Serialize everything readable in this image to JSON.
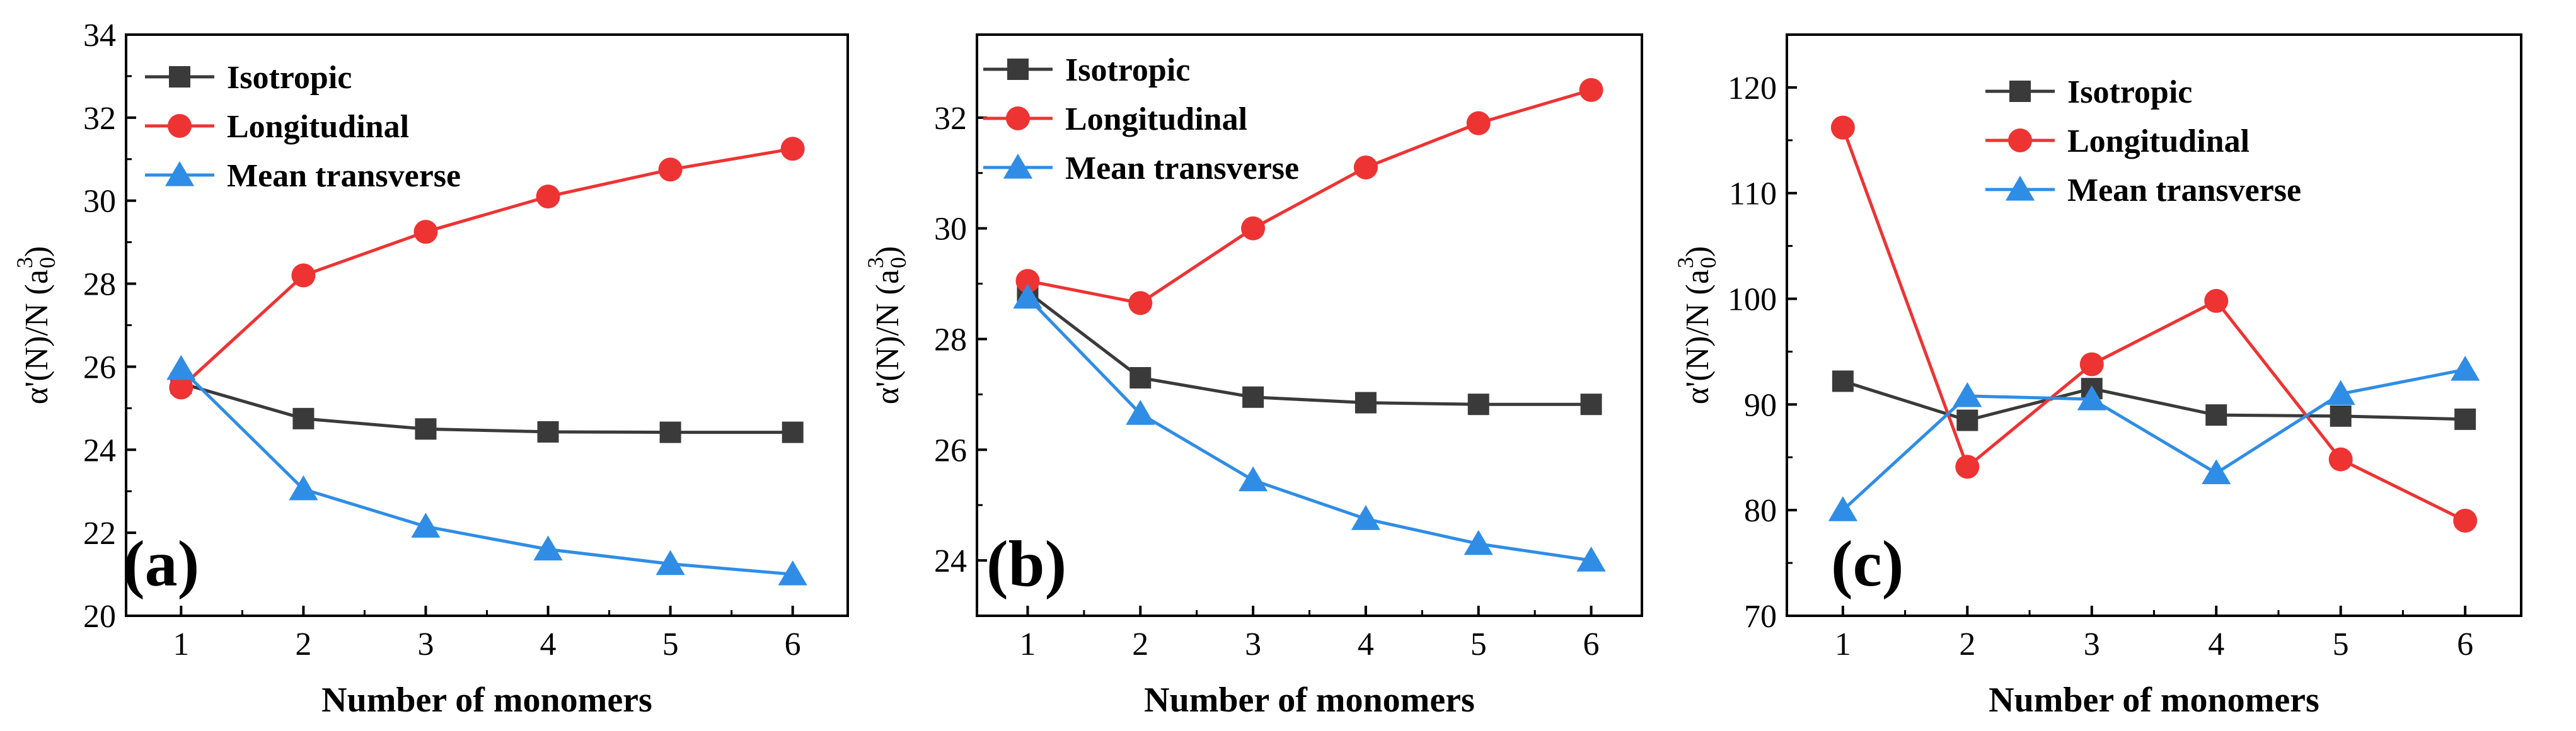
{
  "colors": {
    "isotropic": "#3a3a3a",
    "longitudinal": "#ee3333",
    "mean_transverse": "#2f8de6",
    "axis": "#000000"
  },
  "chart_data": [
    {
      "type": "line",
      "panel_label": "(a)",
      "xlabel": "Number of monomers",
      "ylabel": "α'(N)/N (a0³)",
      "x": [
        1,
        2,
        3,
        4,
        5,
        6
      ],
      "xlim": [
        0.55,
        6.45
      ],
      "ylim": [
        20,
        34
      ],
      "yticks": [
        20,
        22,
        24,
        26,
        28,
        30,
        32,
        34
      ],
      "legend_position": "top-left",
      "series": [
        {
          "name": "Isotropic",
          "marker": "square",
          "values": [
            25.6,
            24.75,
            24.5,
            24.43,
            24.42,
            24.42
          ]
        },
        {
          "name": "Longitudinal",
          "marker": "circle",
          "values": [
            25.5,
            28.2,
            29.25,
            30.1,
            30.75,
            31.25
          ]
        },
        {
          "name": "Mean transverse",
          "marker": "triangle",
          "values": [
            25.95,
            23.05,
            22.15,
            21.6,
            21.25,
            21.0
          ]
        }
      ]
    },
    {
      "type": "line",
      "panel_label": "(b)",
      "xlabel": "Number of monomers",
      "ylabel": "α'(N)/N (a0³)",
      "x": [
        1,
        2,
        3,
        4,
        5,
        6
      ],
      "xlim": [
        0.55,
        6.45
      ],
      "ylim": [
        23,
        33.5
      ],
      "yticks": [
        24,
        26,
        28,
        30,
        32
      ],
      "legend_position": "top-left",
      "series": [
        {
          "name": "Isotropic",
          "marker": "square",
          "values": [
            28.85,
            27.3,
            26.95,
            26.85,
            26.82,
            26.82
          ]
        },
        {
          "name": "Longitudinal",
          "marker": "circle",
          "values": [
            29.05,
            28.65,
            30.0,
            31.1,
            31.9,
            32.5
          ]
        },
        {
          "name": "Mean transverse",
          "marker": "triangle",
          "values": [
            28.75,
            26.65,
            25.45,
            24.75,
            24.3,
            24.0
          ]
        }
      ]
    },
    {
      "type": "line",
      "panel_label": "(c)",
      "xlabel": "Number of monomers",
      "ylabel": "α'(N)/N (a0³)",
      "x": [
        1,
        2,
        3,
        4,
        5,
        6
      ],
      "xlim": [
        0.55,
        6.45
      ],
      "ylim": [
        70,
        125
      ],
      "yticks": [
        70,
        80,
        90,
        100,
        110,
        120
      ],
      "legend_position": "top-center",
      "series": [
        {
          "name": "Isotropic",
          "marker": "square",
          "values": [
            92.2,
            88.5,
            91.5,
            89.0,
            88.9,
            88.6
          ]
        },
        {
          "name": "Longitudinal",
          "marker": "circle",
          "values": [
            116.2,
            84.1,
            93.8,
            99.8,
            84.8,
            79.0
          ]
        },
        {
          "name": "Mean transverse",
          "marker": "triangle",
          "values": [
            80.0,
            90.8,
            90.5,
            83.5,
            91.0,
            93.3
          ]
        }
      ]
    }
  ]
}
